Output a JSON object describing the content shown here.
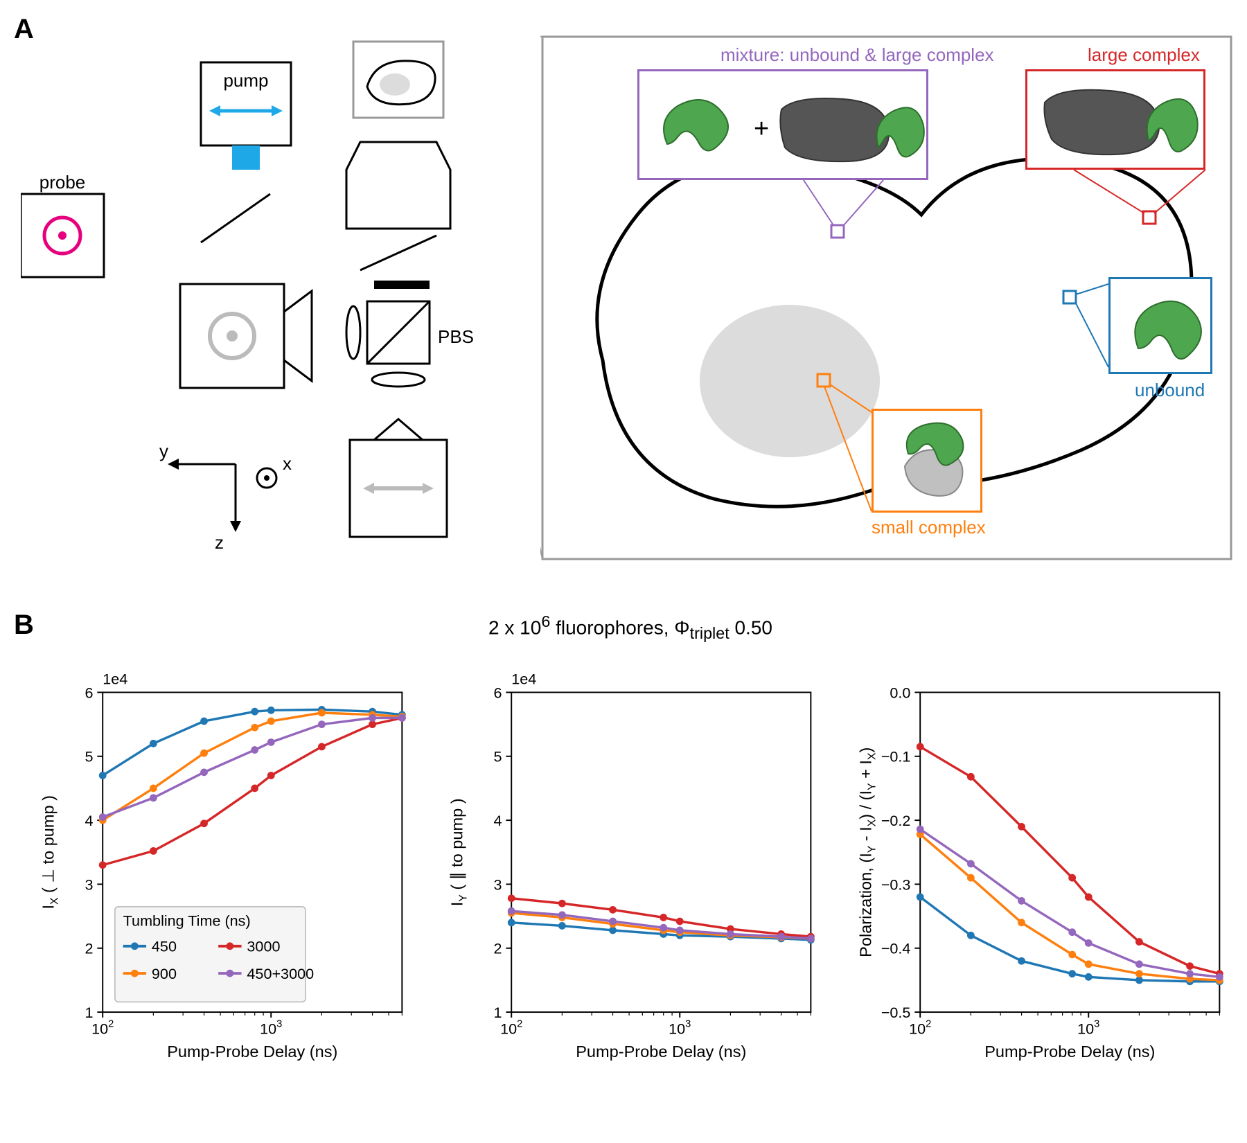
{
  "panelA": {
    "label": "A",
    "schematic": {
      "pump_label": "pump",
      "probe_label": "probe",
      "pbs_label": "PBS",
      "axes": {
        "x": "x",
        "y": "y",
        "z": "z"
      },
      "pump_color": "#1fa8e8",
      "probe_color": "#e6007e",
      "gray_color": "#bbbbbb"
    },
    "cell": {
      "labels": {
        "mixture": "mixture: unbound & large complex",
        "large": "large complex",
        "unbound": "unbound",
        "small": "small complex"
      },
      "colors": {
        "mixture": "#9467bd",
        "large": "#d62728",
        "unbound": "#1f77b4",
        "small": "#ff7f0e",
        "protein_green": "#4ea64e",
        "partner_gray": "#555555",
        "partner_light": "#c0c0c0",
        "cell_outline": "#000000",
        "nucleus": "#dcdcdc",
        "frame": "#999999"
      }
    }
  },
  "panelB": {
    "label": "B",
    "title": "2 x 10⁶ fluorophores, Φ_triplet 0.50",
    "title_parts": {
      "prefix": "2 x 10",
      "sup": "6",
      "mid": " fluorophores, Φ",
      "sub": "triplet",
      "suffix": " 0.50"
    },
    "x_axis": {
      "label": "Pump-Probe Delay (ns)",
      "scale": "log",
      "lim": [
        100,
        6000
      ],
      "ticks": [
        100,
        1000
      ],
      "tick_labels": [
        "10²",
        "10³"
      ]
    },
    "series_colors": {
      "450": "#1f77b4",
      "900": "#ff7f0e",
      "3000": "#d62728",
      "450+3000": "#9467bd"
    },
    "legend": {
      "title": "Tumbling Time (ns)",
      "items": [
        "450",
        "900",
        "3000",
        "450+3000"
      ]
    },
    "x_values": [
      100,
      200,
      400,
      800,
      1000,
      2000,
      4000,
      6000
    ],
    "charts": [
      {
        "id": "ix",
        "ylabel_raw": "I_X ( ⊥ to pump )",
        "ylabel_parts": {
          "main": "I",
          "sub": "X",
          "rest": " ( ⊥ to pump )"
        },
        "ylim": [
          1,
          6
        ],
        "yticks": [
          1,
          2,
          3,
          4,
          5,
          6
        ],
        "exp_label": "1e4",
        "show_legend": true,
        "series": {
          "450": [
            4.7,
            5.2,
            5.55,
            5.7,
            5.72,
            5.73,
            5.7,
            5.65
          ],
          "900": [
            4.0,
            4.5,
            5.05,
            5.45,
            5.55,
            5.68,
            5.65,
            5.62
          ],
          "3000": [
            3.3,
            3.52,
            3.95,
            4.5,
            4.7,
            5.15,
            5.5,
            5.6
          ],
          "450+3000": [
            4.05,
            4.35,
            4.75,
            5.1,
            5.22,
            5.5,
            5.6,
            5.6
          ]
        }
      },
      {
        "id": "iy",
        "ylabel_raw": "I_Y ( ∥ to pump )",
        "ylabel_parts": {
          "main": "I",
          "sub": "Y",
          "rest": " ( ∥ to pump )"
        },
        "ylim": [
          1,
          6
        ],
        "yticks": [
          1,
          2,
          3,
          4,
          5,
          6
        ],
        "exp_label": "1e4",
        "show_legend": false,
        "series": {
          "450": [
            2.4,
            2.35,
            2.28,
            2.22,
            2.2,
            2.18,
            2.15,
            2.13
          ],
          "900": [
            2.55,
            2.48,
            2.38,
            2.28,
            2.25,
            2.2,
            2.17,
            2.15
          ],
          "3000": [
            2.78,
            2.7,
            2.6,
            2.48,
            2.42,
            2.3,
            2.22,
            2.18
          ],
          "450+3000": [
            2.58,
            2.52,
            2.42,
            2.32,
            2.28,
            2.22,
            2.18,
            2.15
          ]
        }
      },
      {
        "id": "pol",
        "ylabel_raw": "Polarization, (I_Y - I_X) / (I_Y + I_X)",
        "ylabel_parts": {
          "main": "Polarization, (I",
          "sub": "Y",
          "rest": " - I",
          "sub2": "X",
          "rest2": ") / (I",
          "sub3": "Y",
          "rest3": " + I",
          "sub4": "X",
          "rest4": ")"
        },
        "ylim": [
          -0.5,
          0.0
        ],
        "yticks": [
          -0.5,
          -0.4,
          -0.3,
          -0.2,
          -0.1,
          0.0
        ],
        "ytick_labels": [
          "−0.5",
          "−0.4",
          "−0.3",
          "−0.2",
          "−0.1",
          "0.0"
        ],
        "exp_label": "",
        "show_legend": false,
        "series": {
          "450": [
            -0.32,
            -0.38,
            -0.42,
            -0.44,
            -0.445,
            -0.45,
            -0.452,
            -0.452
          ],
          "900": [
            -0.222,
            -0.29,
            -0.36,
            -0.41,
            -0.425,
            -0.44,
            -0.448,
            -0.45
          ],
          "3000": [
            -0.085,
            -0.132,
            -0.21,
            -0.29,
            -0.32,
            -0.39,
            -0.428,
            -0.44
          ],
          "450+3000": [
            -0.214,
            -0.268,
            -0.326,
            -0.375,
            -0.392,
            -0.425,
            -0.44,
            -0.445
          ]
        }
      }
    ]
  }
}
